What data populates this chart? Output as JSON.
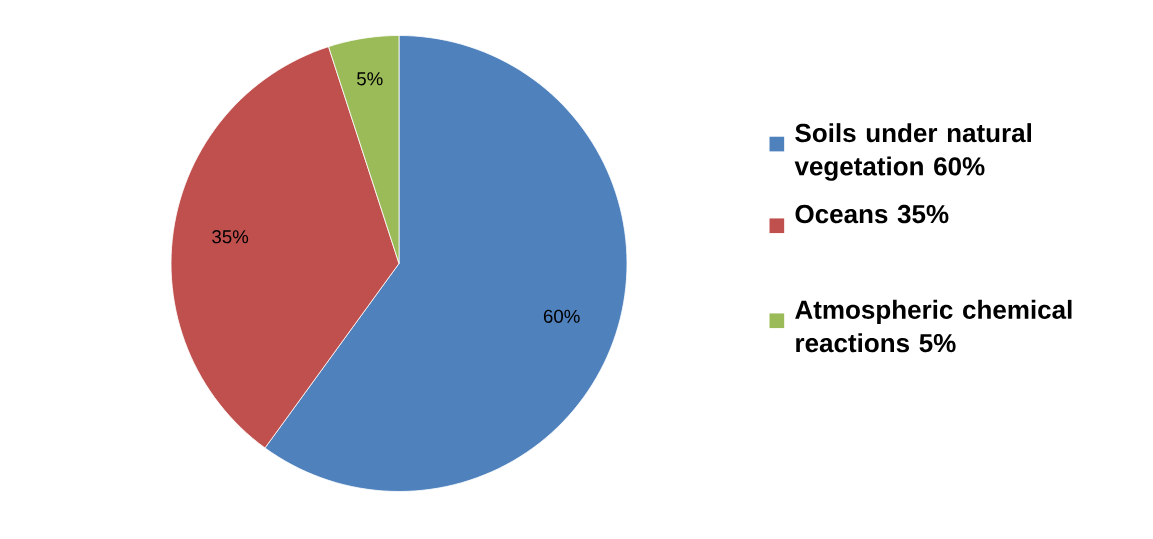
{
  "chart_data": {
    "type": "pie",
    "categories": [
      "Soils under natural vegetation 60%",
      "Oceans 35%",
      "Atmospheric chemical reactions 5%"
    ],
    "values": [
      60,
      35,
      5
    ],
    "colors": [
      "#4f81bd",
      "#c0504d",
      "#9bbb59"
    ],
    "value_labels": [
      "60%",
      "35%",
      "5%"
    ],
    "legend": "right"
  }
}
